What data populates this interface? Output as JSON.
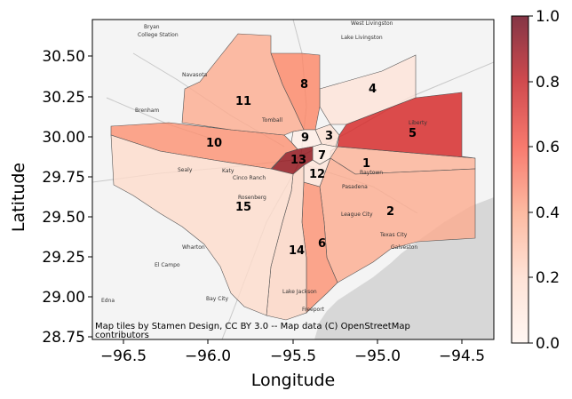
{
  "axes": {
    "xlabel": "Longitude",
    "ylabel": "Latitude",
    "x_ticks": [
      "−96.5",
      "−96.0",
      "−95.5",
      "−95.0",
      "−94.5"
    ],
    "y_ticks": [
      "28.75",
      "29.00",
      "29.25",
      "29.50",
      "29.75",
      "30.00",
      "30.25",
      "30.50"
    ]
  },
  "colorbar": {
    "ticks": [
      "0.0",
      "0.2",
      "0.4",
      "0.6",
      "0.8",
      "1.0"
    ],
    "range": [
      0,
      1
    ],
    "colormap": "Reds",
    "alpha": 0.8
  },
  "attribution": {
    "line1": "Map tiles by Stamen Design, CC BY 3.0 -- Map data (C) OpenStreetMap",
    "line2": "contributors"
  },
  "basemap_places": [
    "Bryan",
    "College Station",
    "West Livingston",
    "Lake Livingston",
    "Navasota",
    "Brenham",
    "Wharton",
    "El Campo",
    "Edna",
    "Bay City",
    "Pasadena",
    "Baytown",
    "League City",
    "Texas City",
    "Galveston",
    "Lake Jackson",
    "Freeport",
    "Liberty",
    "Sealy",
    "Cinco Ranch",
    "Rosenberg",
    "Tomball",
    "Katy"
  ],
  "chart_data": {
    "type": "choropleth",
    "xlabel": "Longitude",
    "ylabel": "Latitude",
    "xlim": [
      -96.75,
      -94.2
    ],
    "ylim": [
      28.73,
      30.73
    ],
    "value_range": [
      0,
      1
    ],
    "regions": [
      {
        "id": "1",
        "value": 0.28
      },
      {
        "id": "2",
        "value": 0.3
      },
      {
        "id": "3",
        "value": 0.12
      },
      {
        "id": "4",
        "value": 0.1
      },
      {
        "id": "5",
        "value": 0.72
      },
      {
        "id": "6",
        "value": 0.38
      },
      {
        "id": "7",
        "value": 0.05
      },
      {
        "id": "8",
        "value": 0.42
      },
      {
        "id": "9",
        "value": 0.04
      },
      {
        "id": "10",
        "value": 0.38
      },
      {
        "id": "11",
        "value": 0.3
      },
      {
        "id": "12",
        "value": 0.1
      },
      {
        "id": "13",
        "value": 0.92
      },
      {
        "id": "14",
        "value": 0.16
      },
      {
        "id": "15",
        "value": 0.14
      }
    ]
  }
}
